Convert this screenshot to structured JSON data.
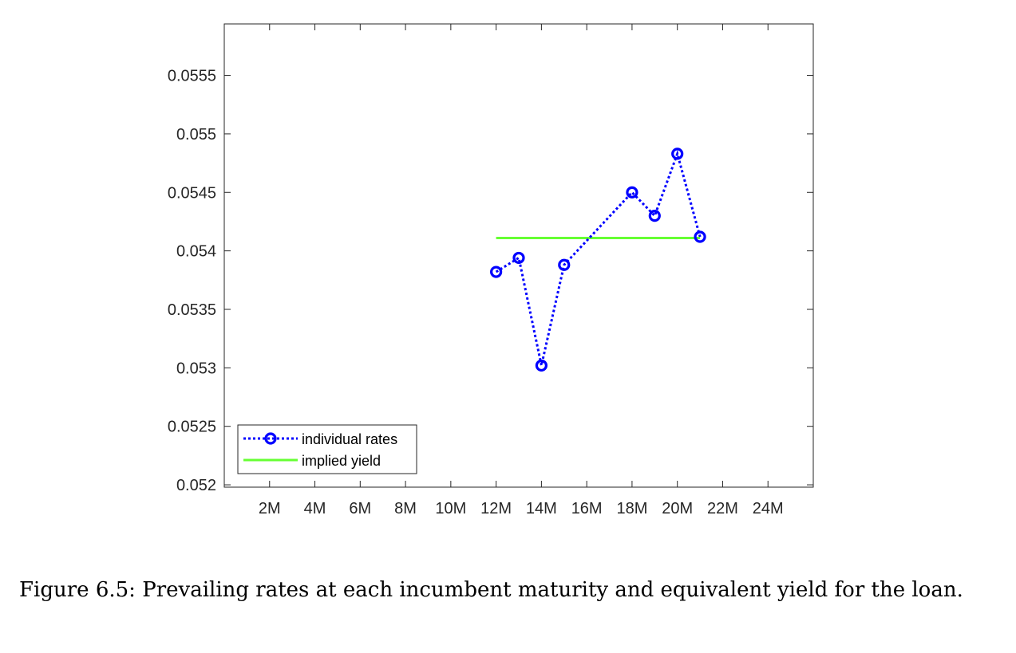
{
  "caption": "Figure 6.5: Prevailing rates at each incumbent maturity and equivalent yield for the loan.",
  "chart_data": {
    "type": "line",
    "title": "",
    "xlabel": "",
    "ylabel": "",
    "x_ticks": [
      {
        "value": 2,
        "label": "2M"
      },
      {
        "value": 4,
        "label": "4M"
      },
      {
        "value": 6,
        "label": "6M"
      },
      {
        "value": 8,
        "label": "8M"
      },
      {
        "value": 10,
        "label": "10M"
      },
      {
        "value": 12,
        "label": "12M"
      },
      {
        "value": 14,
        "label": "14M"
      },
      {
        "value": 16,
        "label": "16M"
      },
      {
        "value": 18,
        "label": "18M"
      },
      {
        "value": 20,
        "label": "20M"
      },
      {
        "value": 22,
        "label": "22M"
      },
      {
        "value": 24,
        "label": "24M"
      }
    ],
    "y_ticks": [
      {
        "value": 0.052,
        "label": "0.052"
      },
      {
        "value": 0.0525,
        "label": "0.0525"
      },
      {
        "value": 0.053,
        "label": "0.053"
      },
      {
        "value": 0.0535,
        "label": "0.0535"
      },
      {
        "value": 0.054,
        "label": "0.054"
      },
      {
        "value": 0.0545,
        "label": "0.0545"
      },
      {
        "value": 0.055,
        "label": "0.055"
      },
      {
        "value": 0.0555,
        "label": "0.0555"
      }
    ],
    "xlim": [
      0,
      26
    ],
    "ylim": [
      0.05198,
      0.05594
    ],
    "grid": false,
    "legend_position": "bottom-left",
    "series": [
      {
        "name": "individual rates",
        "style": "dotted-with-circle-markers",
        "color": "#0000ff",
        "x": [
          12,
          13,
          14,
          15,
          18,
          19,
          20,
          21
        ],
        "y": [
          0.05382,
          0.05394,
          0.05302,
          0.05388,
          0.0545,
          0.0543,
          0.05483,
          0.05412
        ]
      },
      {
        "name": "implied yield",
        "style": "solid",
        "color": "#66ff33",
        "x": [
          12,
          21
        ],
        "y": [
          0.05411,
          0.05411
        ]
      }
    ]
  }
}
